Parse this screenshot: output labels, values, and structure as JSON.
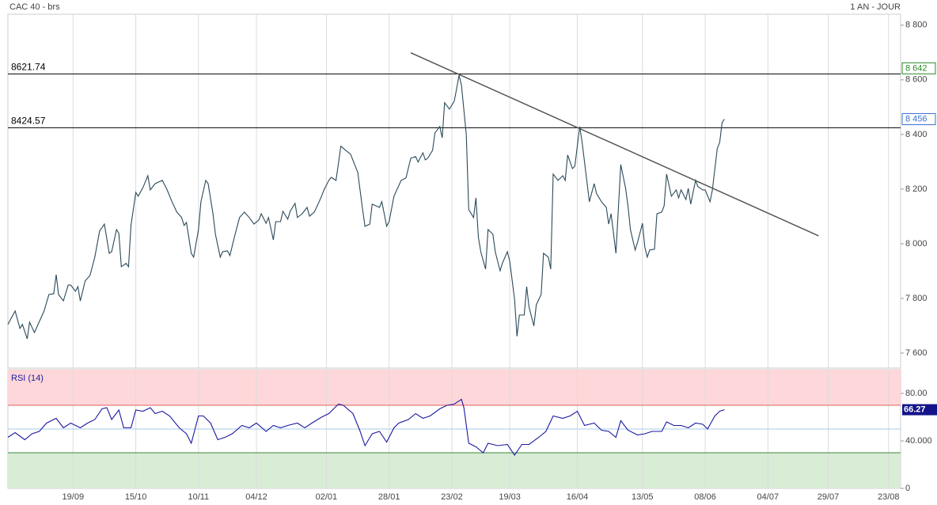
{
  "chart_data": [
    {
      "type": "line",
      "title": "CAC 40 - brs",
      "period": "1 AN - JOUR",
      "color": "#2b4a5a",
      "xlim": [
        0,
        370
      ],
      "xticks": [
        {
          "value": 27,
          "label": "19/09"
        },
        {
          "value": 53,
          "label": "15/10"
        },
        {
          "value": 79,
          "label": "10/11"
        },
        {
          "value": 103,
          "label": "04/12"
        },
        {
          "value": 132,
          "label": "02/01"
        },
        {
          "value": 158,
          "label": "28/01"
        },
        {
          "value": 184,
          "label": "23/02"
        },
        {
          "value": 208,
          "label": "19/03"
        },
        {
          "value": 236,
          "label": "16/04"
        },
        {
          "value": 263,
          "label": "13/05"
        },
        {
          "value": 289,
          "label": "08/06"
        },
        {
          "value": 315,
          "label": "04/07"
        },
        {
          "value": 340,
          "label": "29/07"
        },
        {
          "value": 365,
          "label": "23/08"
        }
      ],
      "ylim": [
        7545,
        8840
      ],
      "yticks": [
        {
          "value": 7600,
          "label": "7 600"
        },
        {
          "value": 7800,
          "label": "7 800"
        },
        {
          "value": 8000,
          "label": "8 000"
        },
        {
          "value": 8200,
          "label": "8 200"
        },
        {
          "value": 8400,
          "label": "8 400"
        },
        {
          "value": 8600,
          "label": "8 600"
        },
        {
          "value": 8800,
          "label": "8 800"
        }
      ],
      "x": [
        0,
        3,
        5,
        6,
        8,
        9,
        11,
        15,
        17,
        19,
        20,
        21,
        23,
        25,
        26,
        28,
        29,
        30,
        32,
        34,
        36,
        38,
        40,
        42,
        43,
        45,
        46,
        47,
        49,
        50,
        51,
        53,
        54,
        56,
        58,
        59,
        61,
        64,
        66,
        68,
        70,
        72,
        73,
        74,
        76,
        77,
        79,
        80,
        82,
        83,
        85,
        86,
        88,
        89,
        91,
        92,
        94,
        96,
        98,
        100,
        102,
        104,
        105,
        107,
        108,
        110,
        111,
        113,
        114,
        116,
        117,
        119,
        120,
        122,
        124,
        125,
        127,
        129,
        130,
        131,
        133,
        134,
        136,
        138,
        140,
        142,
        144,
        145,
        147,
        148,
        150,
        151,
        154,
        155,
        157,
        158,
        160,
        163,
        165,
        166,
        167,
        169,
        170,
        172,
        173,
        174,
        176,
        177,
        179,
        180,
        181,
        183,
        185,
        186,
        187,
        188,
        190,
        191,
        193,
        194,
        195,
        196,
        198,
        199,
        201,
        202,
        204,
        205,
        207,
        208,
        210,
        211,
        212,
        214,
        215,
        216,
        218,
        219,
        221,
        222,
        224,
        225,
        226,
        228,
        230,
        231,
        232,
        234,
        235,
        237,
        238,
        240,
        241,
        243,
        244,
        246,
        248,
        249,
        250,
        252,
        253,
        254,
        256,
        257,
        258,
        260,
        261,
        263,
        264,
        265,
        266,
        268,
        269,
        271,
        272,
        273,
        275,
        277,
        278,
        279,
        281,
        282,
        283,
        285,
        286,
        288,
        289,
        291,
        292,
        294,
        295,
        296,
        297
      ],
      "values": [
        7705,
        7754,
        7690,
        7705,
        7652,
        7713,
        7675,
        7754,
        7814,
        7817,
        7887,
        7814,
        7791,
        7849,
        7849,
        7826,
        7843,
        7791,
        7864,
        7884,
        7951,
        8046,
        8072,
        7965,
        7971,
        8052,
        8038,
        7916,
        7928,
        7916,
        8067,
        8188,
        8174,
        8206,
        8249,
        8197,
        8220,
        8232,
        8197,
        8154,
        8116,
        8096,
        8067,
        8078,
        7965,
        7951,
        8052,
        8154,
        8232,
        8220,
        8110,
        8035,
        7951,
        7971,
        7974,
        7957,
        8029,
        8096,
        8116,
        8096,
        8072,
        8087,
        8110,
        8075,
        8096,
        8014,
        8081,
        8081,
        8119,
        8090,
        8119,
        8148,
        8096,
        8110,
        8133,
        8101,
        8116,
        8154,
        8174,
        8197,
        8232,
        8243,
        8232,
        8357,
        8342,
        8328,
        8284,
        8261,
        8125,
        8064,
        8072,
        8145,
        8133,
        8154,
        8064,
        8081,
        8174,
        8232,
        8241,
        8278,
        8313,
        8319,
        8299,
        8333,
        8307,
        8313,
        8342,
        8406,
        8429,
        8388,
        8516,
        8493,
        8522,
        8568,
        8617,
        8580,
        8400,
        8125,
        8096,
        8168,
        8023,
        7971,
        7907,
        8052,
        8035,
        7971,
        7901,
        7930,
        7971,
        7936,
        7797,
        7661,
        7739,
        7739,
        7843,
        7768,
        7699,
        7777,
        7814,
        7965,
        7951,
        7907,
        8255,
        8232,
        8249,
        8232,
        8325,
        8275,
        8284,
        8429,
        8371,
        8226,
        8154,
        8220,
        8183,
        8154,
        8133,
        8072,
        8110,
        7965,
        8125,
        8290,
        8203,
        8139,
        8052,
        7977,
        8006,
        8075,
        7988,
        7951,
        7977,
        7980,
        8110,
        8116,
        8139,
        8255,
        8174,
        8197,
        8168,
        8197,
        8162,
        8203,
        8145,
        8232,
        8209,
        8197,
        8197,
        8154,
        8197,
        8348,
        8371,
        8443,
        8456
      ],
      "hlines": [
        8621.74,
        8424.57
      ],
      "trendline": {
        "x": [
          167,
          336
        ],
        "values": [
          8699,
          8029
        ]
      },
      "markers": [
        {
          "value": 8642,
          "label": "8 642",
          "color": "#2a8a2a"
        },
        {
          "value": 8456,
          "label": "8 456",
          "color": "#3b6fd1"
        }
      ]
    },
    {
      "type": "line",
      "title": "RSI (14)",
      "color": "#1a1aa0",
      "xlim": [
        0,
        370
      ],
      "ylim": [
        0,
        100
      ],
      "yticks": [
        {
          "value": 80,
          "label": "80.00"
        },
        {
          "value": 40,
          "label": "40.000"
        },
        0
      ],
      "overbought": 70,
      "oversold": 30,
      "midline": 50,
      "x": [
        0,
        3,
        7,
        10,
        13,
        16,
        20,
        23,
        26,
        30,
        33,
        36,
        39,
        41,
        43,
        46,
        48,
        51,
        53,
        56,
        59,
        61,
        64,
        67,
        71,
        74,
        76,
        79,
        81,
        84,
        87,
        90,
        93,
        97,
        100,
        103,
        107,
        110,
        113,
        116,
        120,
        123,
        126,
        130,
        133,
        137,
        139,
        143,
        146,
        148,
        151,
        154,
        157,
        160,
        162,
        166,
        169,
        172,
        175,
        179,
        182,
        185,
        188,
        189,
        191,
        194,
        197,
        199,
        203,
        207,
        210,
        213,
        216,
        220,
        223,
        226,
        230,
        233,
        236,
        239,
        243,
        246,
        249,
        252,
        254,
        257,
        261,
        264,
        267,
        271,
        273,
        276,
        279,
        282,
        285,
        288,
        290,
        293,
        295,
        297
      ],
      "values": [
        43,
        47,
        41,
        46,
        48,
        55,
        59,
        51,
        55,
        51,
        55,
        58,
        67,
        68,
        58,
        66,
        51,
        51,
        66,
        65,
        68,
        63,
        65,
        61,
        51,
        46,
        38,
        61,
        61,
        55,
        41,
        43,
        46,
        53,
        51,
        55,
        48,
        53,
        51,
        53,
        55,
        51,
        55,
        60,
        63,
        71,
        70,
        63,
        48,
        36,
        46,
        48,
        39,
        51,
        55,
        58,
        63,
        59,
        61,
        67,
        70,
        71,
        75,
        68,
        38,
        35,
        30,
        38,
        36,
        37,
        28,
        37,
        37,
        43,
        48,
        61,
        59,
        61,
        65,
        53,
        55,
        49,
        48,
        43,
        57,
        49,
        45,
        46,
        48,
        48,
        56,
        53,
        53,
        51,
        55,
        54,
        50,
        61,
        65,
        66.27
      ]
    }
  ]
}
